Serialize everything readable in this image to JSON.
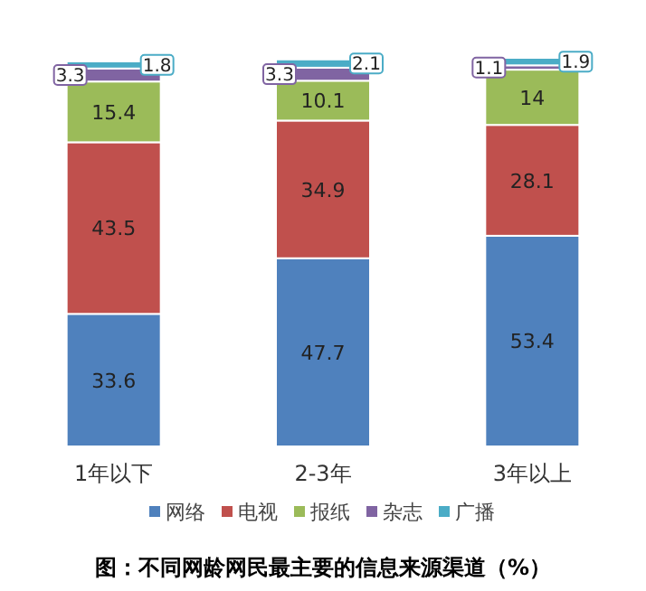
{
  "chart_data": {
    "type": "bar",
    "stacked": true,
    "data_labels": true,
    "legend": "bottom",
    "title": "图：不同网龄网民最主要的信息来源渠道（%）",
    "categories": [
      "1年以下",
      "2-3年",
      "3年以上"
    ],
    "series": [
      {
        "name": "网络",
        "color": "#4f81bd",
        "values": [
          33.6,
          47.7,
          53.4
        ]
      },
      {
        "name": "电视",
        "color": "#c0504d",
        "values": [
          43.5,
          34.9,
          28.1
        ]
      },
      {
        "name": "报纸",
        "color": "#9bbb59",
        "values": [
          15.4,
          10.1,
          14
        ]
      },
      {
        "name": "杂志",
        "color": "#8064a2",
        "values": [
          3.3,
          3.3,
          1.1
        ]
      },
      {
        "name": "广播",
        "color": "#4bacc6",
        "values": [
          1.8,
          2.1,
          1.9
        ]
      }
    ]
  }
}
